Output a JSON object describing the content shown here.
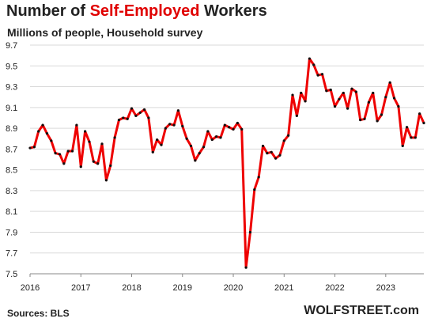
{
  "header": {
    "title_part1": "Number of ",
    "title_highlight": "Self-Employed",
    "title_part2": " Workers",
    "subtitle": "Millions of people, Household survey"
  },
  "footer": {
    "source": "Sources: BLS",
    "credit": "WOLFSTREET.com"
  },
  "colors": {
    "line": "#ee0000",
    "markers": "#111111",
    "title_highlight": "#e00000",
    "grid": "#d9d9d9"
  },
  "chart_data": {
    "type": "line",
    "title": "Number of Self-Employed Workers",
    "subtitle": "Millions of people, Household survey",
    "xlabel": "",
    "ylabel": "",
    "x_ticks": [
      "2016",
      "2017",
      "2018",
      "2019",
      "2020",
      "2021",
      "2022",
      "2023"
    ],
    "y_ticks": [
      7.5,
      7.7,
      7.9,
      8.1,
      8.3,
      8.5,
      8.7,
      8.9,
      9.1,
      9.3,
      9.5,
      9.7
    ],
    "ylim": [
      7.5,
      9.7
    ],
    "xlim": [
      "2016-01",
      "2023-10"
    ],
    "grid": "horizontal",
    "legend": "none",
    "markers": true,
    "x": [
      "2016-01",
      "2016-02",
      "2016-03",
      "2016-04",
      "2016-05",
      "2016-06",
      "2016-07",
      "2016-08",
      "2016-09",
      "2016-10",
      "2016-11",
      "2016-12",
      "2017-01",
      "2017-02",
      "2017-03",
      "2017-04",
      "2017-05",
      "2017-06",
      "2017-07",
      "2017-08",
      "2017-09",
      "2017-10",
      "2017-11",
      "2017-12",
      "2018-01",
      "2018-02",
      "2018-03",
      "2018-04",
      "2018-05",
      "2018-06",
      "2018-07",
      "2018-08",
      "2018-09",
      "2018-10",
      "2018-11",
      "2018-12",
      "2019-01",
      "2019-02",
      "2019-03",
      "2019-04",
      "2019-05",
      "2019-06",
      "2019-07",
      "2019-08",
      "2019-09",
      "2019-10",
      "2019-11",
      "2019-12",
      "2020-01",
      "2020-02",
      "2020-03",
      "2020-04",
      "2020-05",
      "2020-06",
      "2020-07",
      "2020-08",
      "2020-09",
      "2020-10",
      "2020-11",
      "2020-12",
      "2021-01",
      "2021-02",
      "2021-03",
      "2021-04",
      "2021-05",
      "2021-06",
      "2021-07",
      "2021-08",
      "2021-09",
      "2021-10",
      "2021-11",
      "2021-12",
      "2022-01",
      "2022-02",
      "2022-03",
      "2022-04",
      "2022-05",
      "2022-06",
      "2022-07",
      "2022-08",
      "2022-09",
      "2022-10",
      "2022-11",
      "2022-12",
      "2023-01",
      "2023-02",
      "2023-03",
      "2023-04",
      "2023-05",
      "2023-06",
      "2023-07",
      "2023-08",
      "2023-09",
      "2023-10"
    ],
    "series": [
      {
        "values": [
          8.71,
          8.72,
          8.87,
          8.93,
          8.85,
          8.78,
          8.66,
          8.65,
          8.56,
          8.68,
          8.68,
          8.93,
          8.53,
          8.87,
          8.77,
          8.58,
          8.56,
          8.75,
          8.4,
          8.54,
          8.81,
          8.98,
          9.0,
          8.99,
          9.09,
          9.02,
          9.05,
          9.08,
          9.0,
          8.67,
          8.79,
          8.74,
          8.9,
          8.94,
          8.93,
          9.07,
          8.92,
          8.8,
          8.73,
          8.59,
          8.66,
          8.72,
          8.87,
          8.79,
          8.82,
          8.81,
          8.93,
          8.91,
          8.89,
          8.95,
          8.89,
          7.56,
          7.9,
          8.31,
          8.43,
          8.73,
          8.66,
          8.67,
          8.61,
          8.64,
          8.78,
          8.83,
          9.22,
          9.02,
          9.24,
          9.16,
          9.57,
          9.51,
          9.41,
          9.42,
          9.26,
          9.27,
          9.11,
          9.18,
          9.24,
          9.09,
          9.28,
          9.25,
          8.98,
          8.99,
          9.15,
          9.24,
          8.97,
          9.03,
          9.2,
          9.34,
          9.19,
          9.11,
          8.73,
          8.91,
          8.81,
          8.81,
          9.04,
          8.95
        ]
      }
    ]
  }
}
